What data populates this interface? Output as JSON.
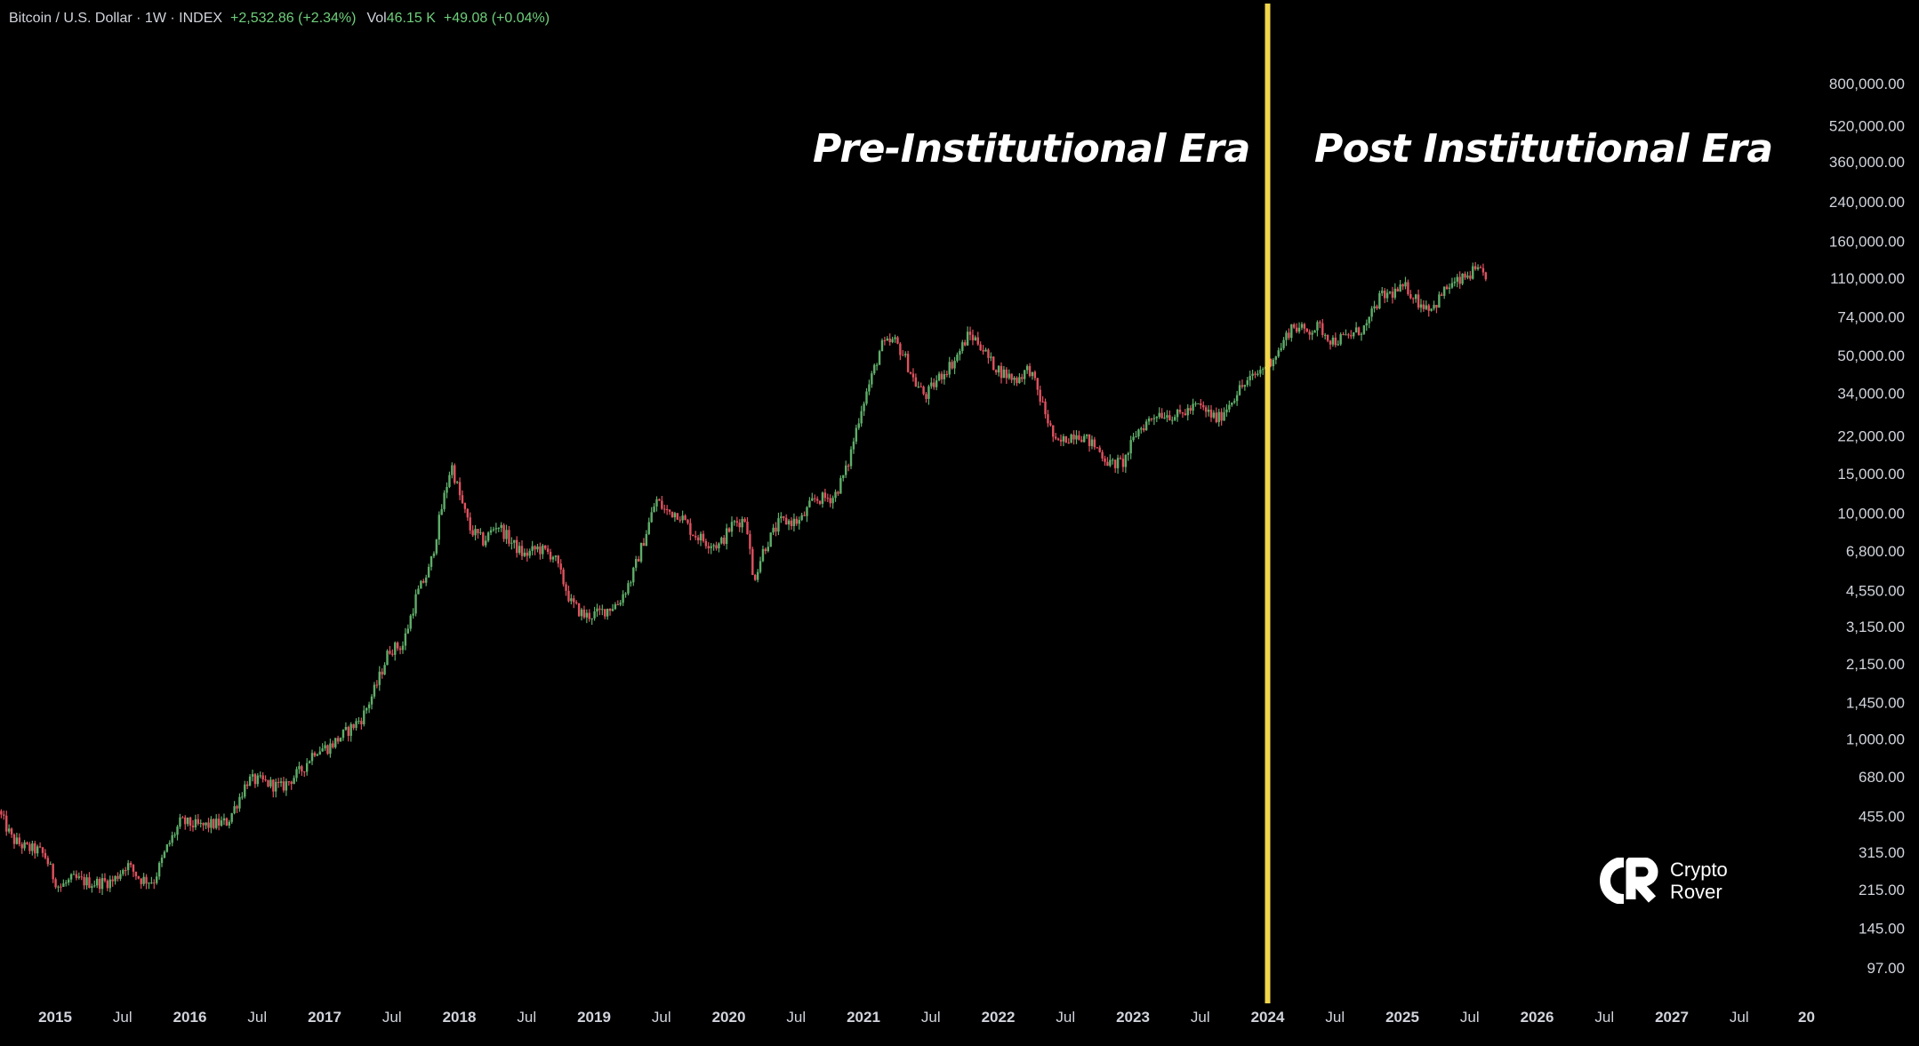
{
  "header": {
    "symbol": "Bitcoin / U.S. Dollar · 1W · INDEX",
    "change": "+2,532.86 (+2.34%)",
    "volume_label": "Vol",
    "volume_value": "46.15 K",
    "volume_change": "+49.08 (+0.04%)"
  },
  "annotations": {
    "left_label": "Pre-Institutional Era",
    "right_label": "Post Institutional Era"
  },
  "logo": {
    "line1": "Crypto",
    "line2": "Rover"
  },
  "colors": {
    "background": "#000000",
    "up_candle": "#5fae6a",
    "down_candle": "#e0525f",
    "divider": "#f2d64b",
    "axis_text": "#d1d4dc"
  },
  "chart_data": {
    "type": "line",
    "style": "weekly candlestick",
    "y_scale": "log",
    "divider_x": "2024",
    "y_ticks": [
      "800,000.00",
      "520,000.00",
      "360,000.00",
      "240,000.00",
      "160,000.00",
      "110,000.00",
      "74,000.00",
      "50,000.00",
      "34,000.00",
      "22,000.00",
      "15,000.00",
      "10,000.00",
      "6,800.00",
      "4,550.00",
      "3,150.00",
      "2,150.00",
      "1,450.00",
      "1,000.00",
      "680.00",
      "455.00",
      "315.00",
      "215.00",
      "145.00",
      "97.00"
    ],
    "x_ticks": [
      "2015",
      "Jul",
      "2016",
      "Jul",
      "2017",
      "Jul",
      "2018",
      "Jul",
      "2019",
      "Jul",
      "2020",
      "Jul",
      "2021",
      "Jul",
      "2022",
      "Jul",
      "2023",
      "Jul",
      "2024",
      "Jul",
      "2025",
      "Jul",
      "2026",
      "Jul",
      "2027",
      "Jul",
      "20"
    ],
    "x_tick_values": [
      2015.0,
      2015.5,
      2016.0,
      2016.5,
      2017.0,
      2017.5,
      2018.0,
      2018.5,
      2019.0,
      2019.5,
      2020.0,
      2020.5,
      2021.0,
      2021.5,
      2022.0,
      2022.5,
      2023.0,
      2023.5,
      2024.0,
      2024.5,
      2025.0,
      2025.5,
      2026.0,
      2026.5,
      2027.0,
      2027.5,
      2028.0
    ],
    "ylim": [
      70,
      1000000
    ],
    "xlim": [
      2014.6,
      2028.0
    ],
    "series": [
      {
        "values": [
          [
            2014.6,
            480
          ],
          [
            2014.7,
            360
          ],
          [
            2014.8,
            330
          ],
          [
            2014.9,
            320
          ],
          [
            2014.95,
            300
          ],
          [
            2015.0,
            250
          ],
          [
            2015.05,
            220
          ],
          [
            2015.15,
            240
          ],
          [
            2015.3,
            230
          ],
          [
            2015.45,
            235
          ],
          [
            2015.55,
            280
          ],
          [
            2015.65,
            240
          ],
          [
            2015.75,
            235
          ],
          [
            2015.85,
            330
          ],
          [
            2015.95,
            430
          ],
          [
            2016.1,
            410
          ],
          [
            2016.3,
            430
          ],
          [
            2016.45,
            660
          ],
          [
            2016.55,
            650
          ],
          [
            2016.7,
            610
          ],
          [
            2016.85,
            730
          ],
          [
            2016.95,
            900
          ],
          [
            2017.05,
            920
          ],
          [
            2017.2,
            1100
          ],
          [
            2017.3,
            1250
          ],
          [
            2017.4,
            1700
          ],
          [
            2017.5,
            2500
          ],
          [
            2017.6,
            2600
          ],
          [
            2017.7,
            4300
          ],
          [
            2017.8,
            5700
          ],
          [
            2017.88,
            10000
          ],
          [
            2017.96,
            16500
          ],
          [
            2018.03,
            11500
          ],
          [
            2018.1,
            8500
          ],
          [
            2018.2,
            7500
          ],
          [
            2018.3,
            9000
          ],
          [
            2018.4,
            7500
          ],
          [
            2018.5,
            6500
          ],
          [
            2018.6,
            7000
          ],
          [
            2018.72,
            6500
          ],
          [
            2018.85,
            4000
          ],
          [
            2018.95,
            3500
          ],
          [
            2019.05,
            3600
          ],
          [
            2019.2,
            4000
          ],
          [
            2019.3,
            5200
          ],
          [
            2019.4,
            8000
          ],
          [
            2019.48,
            11500
          ],
          [
            2019.55,
            10200
          ],
          [
            2019.65,
            10000
          ],
          [
            2019.75,
            8200
          ],
          [
            2019.85,
            7500
          ],
          [
            2019.95,
            7200
          ],
          [
            2020.05,
            9000
          ],
          [
            2020.15,
            9500
          ],
          [
            2020.2,
            5000
          ],
          [
            2020.28,
            7000
          ],
          [
            2020.4,
            9200
          ],
          [
            2020.55,
            9200
          ],
          [
            2020.65,
            11500
          ],
          [
            2020.8,
            11800
          ],
          [
            2020.9,
            16000
          ],
          [
            2021.0,
            29000
          ],
          [
            2021.08,
            40000
          ],
          [
            2021.15,
            55000
          ],
          [
            2021.25,
            58000
          ],
          [
            2021.32,
            50000
          ],
          [
            2021.4,
            38000
          ],
          [
            2021.48,
            33000
          ],
          [
            2021.58,
            40000
          ],
          [
            2021.7,
            48000
          ],
          [
            2021.8,
            62000
          ],
          [
            2021.88,
            57000
          ],
          [
            2021.96,
            47000
          ],
          [
            2022.05,
            42000
          ],
          [
            2022.15,
            39000
          ],
          [
            2022.25,
            44000
          ],
          [
            2022.35,
            30000
          ],
          [
            2022.45,
            20000
          ],
          [
            2022.6,
            23000
          ],
          [
            2022.75,
            19500
          ],
          [
            2022.85,
            16500
          ],
          [
            2022.95,
            16800
          ],
          [
            2023.05,
            23000
          ],
          [
            2023.2,
            28000
          ],
          [
            2023.35,
            27000
          ],
          [
            2023.5,
            30000
          ],
          [
            2023.65,
            26000
          ],
          [
            2023.8,
            35000
          ],
          [
            2023.95,
            42000
          ],
          [
            2024.1,
            52000
          ],
          [
            2024.2,
            68000
          ],
          [
            2024.3,
            64000
          ],
          [
            2024.4,
            67000
          ],
          [
            2024.5,
            58000
          ],
          [
            2024.6,
            60000
          ],
          [
            2024.75,
            67000
          ],
          [
            2024.85,
            90000
          ],
          [
            2024.95,
            95000
          ],
          [
            2025.05,
            100000
          ],
          [
            2025.15,
            85000
          ],
          [
            2025.25,
            82000
          ],
          [
            2025.35,
            100000
          ],
          [
            2025.45,
            107000
          ],
          [
            2025.55,
            118000
          ],
          [
            2025.62,
            114000
          ]
        ]
      }
    ]
  }
}
